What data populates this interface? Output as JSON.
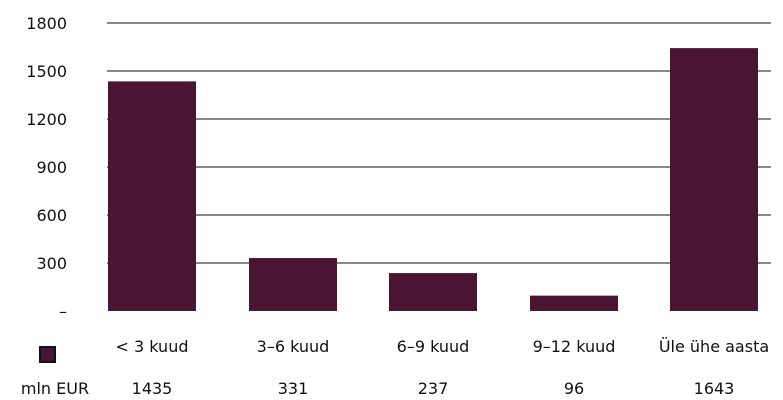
{
  "chart_data": {
    "type": "bar",
    "categories": [
      "< 3 kuud",
      "3–6 kuud",
      "6–9 kuud",
      "9–12 kuud",
      "Üle ühe aasta"
    ],
    "values": [
      1435,
      331,
      237,
      96,
      1643
    ],
    "value_labels": [
      "1435",
      "331",
      "237",
      "96",
      "1643"
    ],
    "y_ticks": [
      {
        "value": 0,
        "label": "–"
      },
      {
        "value": 300,
        "label": "300"
      },
      {
        "value": 600,
        "label": "600"
      },
      {
        "value": 900,
        "label": "900"
      },
      {
        "value": 1200,
        "label": "1200"
      },
      {
        "value": 1500,
        "label": "1500"
      },
      {
        "value": 1800,
        "label": "1800"
      }
    ],
    "ylim": [
      0,
      1800
    ],
    "grid": true,
    "bar_color": "#4a1533",
    "gridline_color": "#111111",
    "series": [
      {
        "name": "mln EUR",
        "values": [
          1435,
          331,
          237,
          96,
          1643
        ]
      }
    ],
    "legend": {
      "position": "bottom-left"
    },
    "title": "",
    "xlabel": "",
    "ylabel": ""
  }
}
